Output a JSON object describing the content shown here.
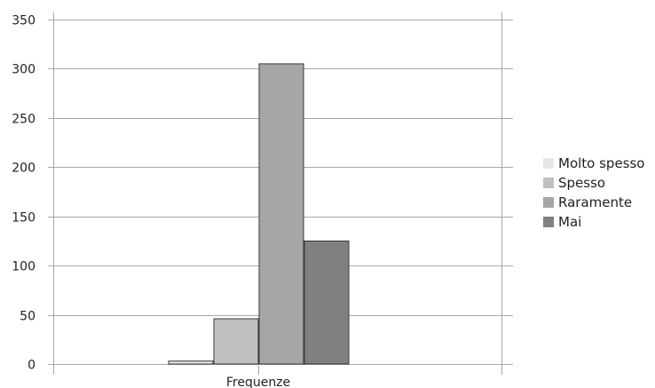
{
  "chart_data": {
    "type": "bar",
    "categories": [
      "Frequenze"
    ],
    "series": [
      {
        "name": "Molto spesso",
        "values": [
          3
        ],
        "color": "#e6e6e6"
      },
      {
        "name": "Spesso",
        "values": [
          46
        ],
        "color": "#c0c0c0"
      },
      {
        "name": "Raramente",
        "values": [
          305
        ],
        "color": "#a6a6a6"
      },
      {
        "name": "Mai",
        "values": [
          125
        ],
        "color": "#808080"
      }
    ],
    "ylim": [
      0,
      350
    ],
    "yticks": [
      0,
      50,
      100,
      150,
      200,
      250,
      300,
      350
    ],
    "grid": true,
    "legend_position": "right"
  }
}
